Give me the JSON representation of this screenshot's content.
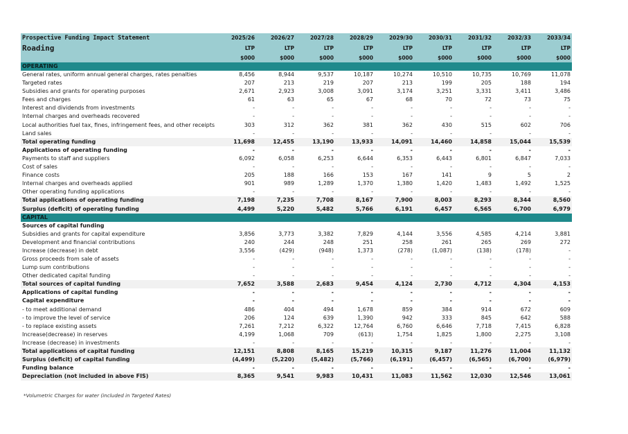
{
  "header": {
    "statement_title": "Prospective Funding Impact Statement",
    "activity": "Roading",
    "years": [
      "2025/26",
      "2026/27",
      "2027/28",
      "2028/29",
      "2029/30",
      "2030/31",
      "2031/32",
      "2032/33",
      "2033/34"
    ],
    "plan_label": "LTP",
    "unit_label": "$000"
  },
  "sections": {
    "operating": "OPERATING",
    "capital": "CAPITAL"
  },
  "rows": [
    {
      "label": "General rates, uniform annual general charges, rates penalties",
      "values": [
        "8,456",
        "8,944",
        "9,537",
        "10,187",
        "10,274",
        "10,510",
        "10,735",
        "10,769",
        "11,078"
      ],
      "style": "normal"
    },
    {
      "label": "Targeted rates",
      "values": [
        "207",
        "213",
        "219",
        "207",
        "213",
        "199",
        "205",
        "188",
        "194"
      ],
      "style": "normal"
    },
    {
      "label": "Subsidies and grants for operating purposes",
      "values": [
        "2,671",
        "2,923",
        "3,008",
        "3,091",
        "3,174",
        "3,251",
        "3,331",
        "3,411",
        "3,486"
      ],
      "style": "normal"
    },
    {
      "label": "Fees and charges",
      "values": [
        "61",
        "63",
        "65",
        "67",
        "68",
        "70",
        "72",
        "73",
        "75"
      ],
      "style": "normal"
    },
    {
      "label": "Interest and dividends from investments",
      "values": [
        "-",
        "-",
        "-",
        "-",
        "-",
        "-",
        "-",
        "-",
        "-"
      ],
      "style": "normal"
    },
    {
      "label": "Internal charges and overheads recovered",
      "values": [
        "-",
        "-",
        "-",
        "-",
        "-",
        "-",
        "-",
        "-",
        "-"
      ],
      "style": "normal"
    },
    {
      "label": "Local authorities fuel tax, fines, infringement fees, and other receipts",
      "values": [
        "303",
        "312",
        "362",
        "381",
        "362",
        "430",
        "515",
        "602",
        "706"
      ],
      "style": "normal"
    },
    {
      "label": "Land sales",
      "values": [
        "-",
        "-",
        "-",
        "-",
        "-",
        "-",
        "-",
        "-",
        "-"
      ],
      "style": "normal"
    },
    {
      "label": "Total operating funding",
      "values": [
        "11,698",
        "12,455",
        "13,190",
        "13,933",
        "14,091",
        "14,460",
        "14,858",
        "15,044",
        "15,539"
      ],
      "style": "total"
    },
    {
      "label": "Applications of operating funding",
      "values": [
        "-",
        "-",
        "-",
        "-",
        "-",
        "-",
        "-",
        "-",
        "-"
      ],
      "style": "bold"
    },
    {
      "label": "Payments to staff and suppliers",
      "values": [
        "6,092",
        "6,058",
        "6,253",
        "6,644",
        "6,353",
        "6,443",
        "6,801",
        "6,847",
        "7,033"
      ],
      "style": "normal"
    },
    {
      "label": "Cost of sales",
      "values": [
        "-",
        "-",
        "-",
        "-",
        "-",
        "-",
        "-",
        "-",
        "-"
      ],
      "style": "normal"
    },
    {
      "label": "Finance costs",
      "values": [
        "205",
        "188",
        "166",
        "153",
        "167",
        "141",
        "9",
        "5",
        "2"
      ],
      "style": "normal"
    },
    {
      "label": "Internal charges and overheads applied",
      "values": [
        "901",
        "989",
        "1,289",
        "1,370",
        "1,380",
        "1,420",
        "1,483",
        "1,492",
        "1,525"
      ],
      "style": "normal"
    },
    {
      "label": "Other operating funding applications",
      "values": [
        "-",
        "-",
        "-",
        "-",
        "-",
        "-",
        "-",
        "-",
        "-"
      ],
      "style": "normal"
    },
    {
      "label": "Total applications of operating funding",
      "values": [
        "7,198",
        "7,235",
        "7,708",
        "8,167",
        "7,900",
        "8,003",
        "8,293",
        "8,344",
        "8,560"
      ],
      "style": "total"
    },
    {
      "label": "Surplus (deficit) of operating funding",
      "values": [
        "4,499",
        "5,220",
        "5,482",
        "5,766",
        "6,191",
        "6,457",
        "6,565",
        "6,700",
        "6,979"
      ],
      "style": "total"
    },
    {
      "section": "capital"
    },
    {
      "label": "Sources of capital funding",
      "values": [
        "",
        "",
        "",
        "",
        "",
        "",
        "",
        "",
        ""
      ],
      "style": "bold"
    },
    {
      "label": "Subsidies and grants for capital expenditure",
      "values": [
        "3,856",
        "3,773",
        "3,382",
        "7,829",
        "4,144",
        "3,556",
        "4,585",
        "4,214",
        "3,881"
      ],
      "style": "normal"
    },
    {
      "label": "Development and financial contributions",
      "values": [
        "240",
        "244",
        "248",
        "251",
        "258",
        "261",
        "265",
        "269",
        "272"
      ],
      "style": "normal"
    },
    {
      "label": "Increase (decrease) in debt",
      "values": [
        "3,556",
        "(429)",
        "(948)",
        "1,373",
        "(278)",
        "(1,087)",
        "(138)",
        "(178)",
        "-"
      ],
      "style": "normal"
    },
    {
      "label": "Gross proceeds from sale of assets",
      "values": [
        "-",
        "-",
        "-",
        "-",
        "-",
        "-",
        "-",
        "-",
        "-"
      ],
      "style": "normal"
    },
    {
      "label": "Lump sum contributions",
      "values": [
        "-",
        "-",
        "-",
        "-",
        "-",
        "-",
        "-",
        "-",
        "-"
      ],
      "style": "normal"
    },
    {
      "label": "Other dedicated capital funding",
      "values": [
        "-",
        "-",
        "-",
        "-",
        "-",
        "-",
        "-",
        "-",
        "-"
      ],
      "style": "normal"
    },
    {
      "label": "Total sources of capital funding",
      "values": [
        "7,652",
        "3,588",
        "2,683",
        "9,454",
        "4,124",
        "2,730",
        "4,712",
        "4,304",
        "4,153"
      ],
      "style": "total"
    },
    {
      "label": "Applications of capital funding",
      "values": [
        "-",
        "-",
        "-",
        "-",
        "-",
        "-",
        "-",
        "-",
        "-"
      ],
      "style": "bold"
    },
    {
      "label": "Capital expenditure",
      "values": [
        "-",
        "-",
        "-",
        "-",
        "-",
        "-",
        "-",
        "-",
        "-"
      ],
      "style": "bold"
    },
    {
      "label": " - to meet additional demand",
      "values": [
        "486",
        "404",
        "494",
        "1,678",
        "859",
        "384",
        "914",
        "672",
        "609"
      ],
      "style": "normal"
    },
    {
      "label": " - to improve the level of service",
      "values": [
        "206",
        "124",
        "639",
        "1,390",
        "942",
        "333",
        "845",
        "642",
        "588"
      ],
      "style": "normal"
    },
    {
      "label": " - to replace existing assets",
      "values": [
        "7,261",
        "7,212",
        "6,322",
        "12,764",
        "6,760",
        "6,646",
        "7,718",
        "7,415",
        "6,828"
      ],
      "style": "normal"
    },
    {
      "label": "Increase(decrease) in reserves",
      "values": [
        "4,199",
        "1,068",
        "709",
        "(613)",
        "1,754",
        "1,825",
        "1,800",
        "2,275",
        "3,108"
      ],
      "style": "normal"
    },
    {
      "label": "Increase (decrease) in investments",
      "values": [
        "-",
        "-",
        "-",
        "-",
        "-",
        "-",
        "-",
        "-",
        "-"
      ],
      "style": "normal"
    },
    {
      "label": "Total applications of capital funding",
      "values": [
        "12,151",
        "8,808",
        "8,165",
        "15,219",
        "10,315",
        "9,187",
        "11,276",
        "11,004",
        "11,132"
      ],
      "style": "total"
    },
    {
      "label": "Surplus (deficit) of capital funding",
      "values": [
        "(4,499)",
        "(5,220)",
        "(5,482)",
        "(5,766)",
        "(6,191)",
        "(6,457)",
        "(6,565)",
        "(6,700)",
        "(6,979)"
      ],
      "style": "total"
    },
    {
      "label": "Funding balance",
      "values": [
        "-",
        "-",
        "-",
        "-",
        "-",
        "-",
        "-",
        "-",
        "-"
      ],
      "style": "bold"
    },
    {
      "label": "Depreciation (not included in above FIS)",
      "values": [
        "8,365",
        "9,541",
        "9,983",
        "10,431",
        "11,083",
        "11,562",
        "12,030",
        "12,546",
        "13,061"
      ],
      "style": "total"
    }
  ],
  "footnote": "*Volumetric Charges for water (included in Targeted Rates)"
}
